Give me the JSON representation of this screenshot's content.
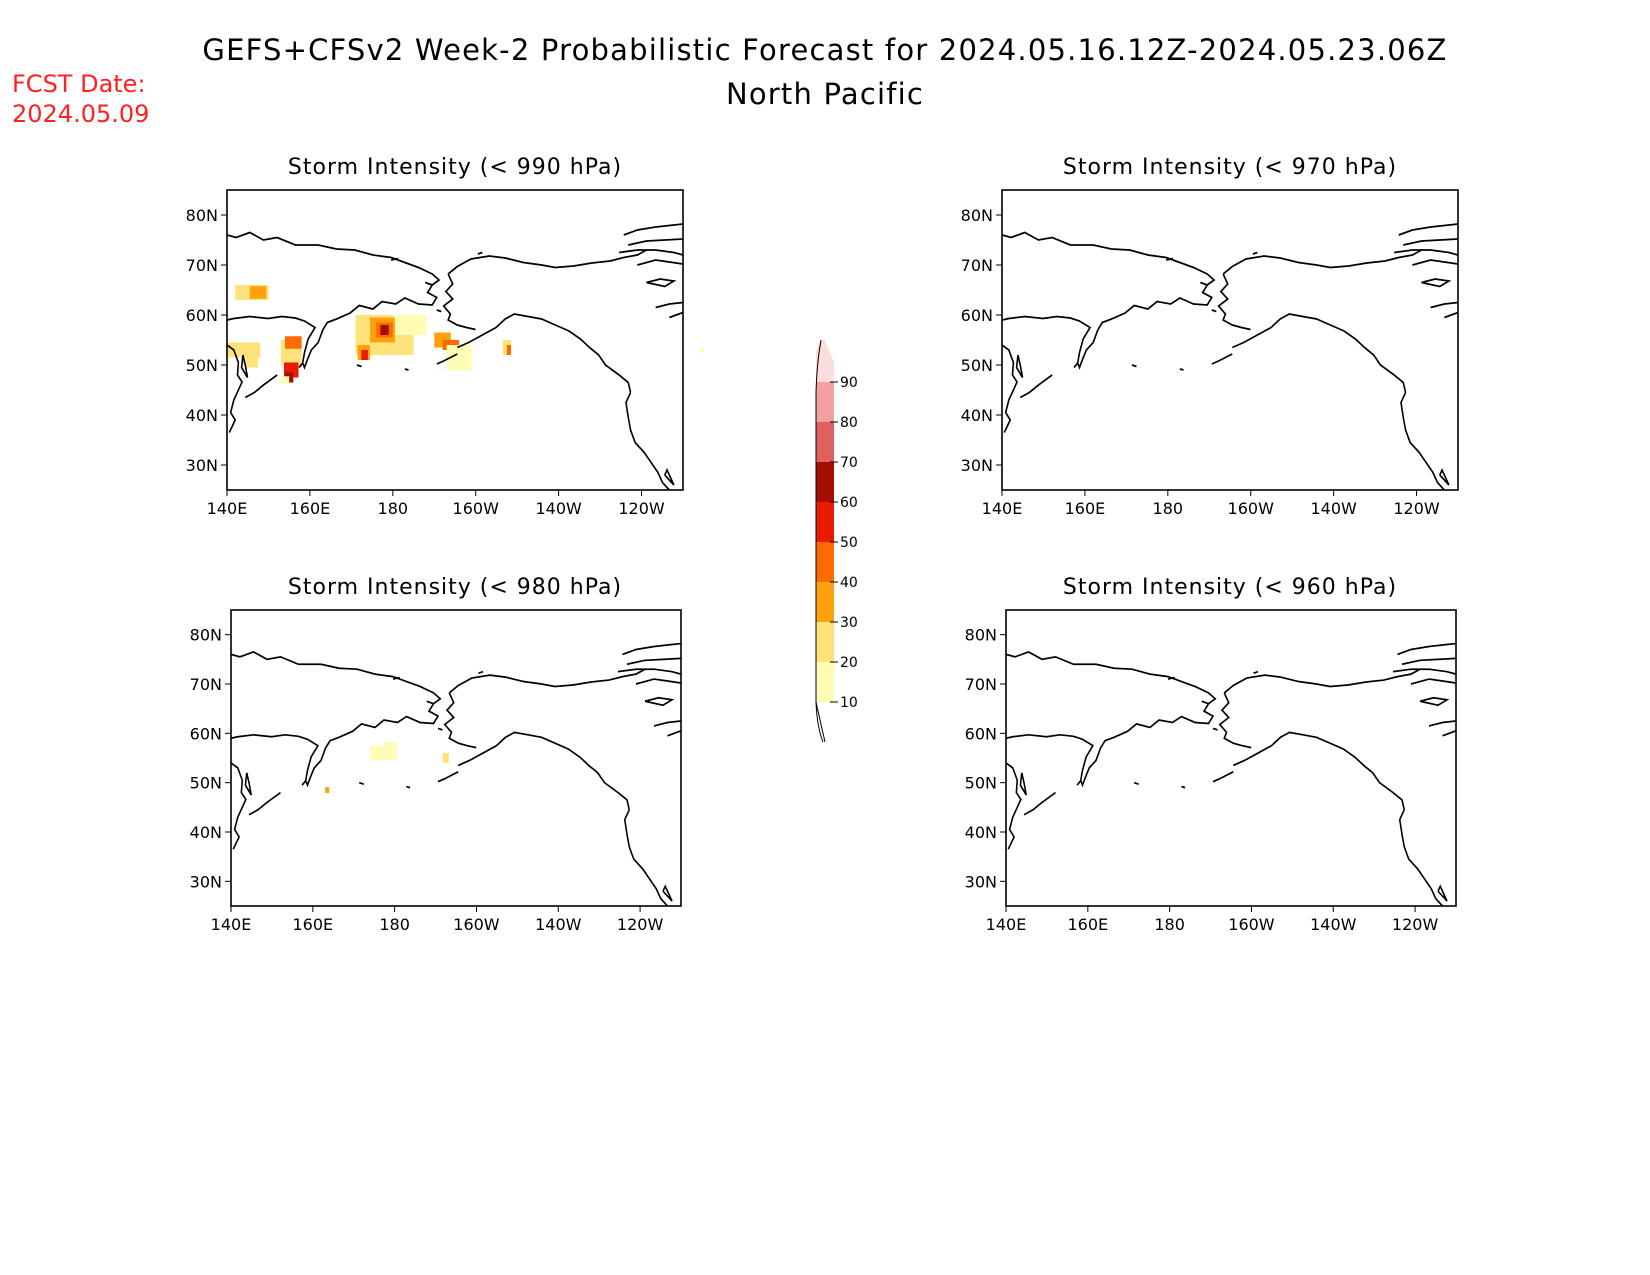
{
  "header": {
    "title": "GEFS+CFSv2 Week-2 Probabilistic Forecast for 2024.05.16.12Z-2024.05.23.06Z",
    "subtitle": "North Pacific",
    "fcst_label": "FCST Date:",
    "fcst_date": "2024.05.09"
  },
  "colors": {
    "text": "#000000",
    "fcst": "#ff2020",
    "levels": [
      "#fffcb4",
      "#ffe27a",
      "#ffa10a",
      "#ff6a00",
      "#e81b00",
      "#a50e00",
      "#e06060",
      "#f2a0a0",
      "#fddede"
    ]
  },
  "lon_ticks": [
    "140E",
    "160E",
    "180",
    "160W",
    "140W",
    "120W"
  ],
  "lat_ticks": [
    "80N",
    "70N",
    "60N",
    "50N",
    "40N",
    "30N"
  ],
  "colorbar": {
    "labels": [
      "10",
      "20",
      "30",
      "40",
      "50",
      "60",
      "70",
      "80",
      "90"
    ]
  },
  "panels": [
    {
      "id": "p990",
      "title": "Storm Intensity (< 990 hPa)",
      "cells": [
        {
          "lon": 146,
          "lat": 64.5,
          "w": 8,
          "h": 3,
          "level": 1
        },
        {
          "lon": 147.5,
          "lat": 64.5,
          "w": 4,
          "h": 2.5,
          "level": 2
        },
        {
          "lon": 144,
          "lat": 53,
          "w": 8,
          "h": 3,
          "level": 1
        },
        {
          "lon": 146,
          "lat": 50.5,
          "w": 3,
          "h": 2,
          "level": 1
        },
        {
          "lon": 155.5,
          "lat": 52.5,
          "w": 5,
          "h": 5,
          "level": 1
        },
        {
          "lon": 156,
          "lat": 54.5,
          "w": 4,
          "h": 2.5,
          "level": 3
        },
        {
          "lon": 155.5,
          "lat": 49,
          "w": 3.5,
          "h": 3,
          "level": 4
        },
        {
          "lon": 155,
          "lat": 47.5,
          "w": 2,
          "h": 2,
          "level": 5
        },
        {
          "lon": 178,
          "lat": 56,
          "w": 14,
          "h": 8,
          "level": 1
        },
        {
          "lon": 184,
          "lat": 58,
          "w": 8,
          "h": 4,
          "level": 0
        },
        {
          "lon": 177.5,
          "lat": 57,
          "w": 6,
          "h": 5,
          "level": 2
        },
        {
          "lon": 178,
          "lat": 57,
          "w": 4,
          "h": 3,
          "level": 3
        },
        {
          "lon": 178,
          "lat": 57,
          "w": 2,
          "h": 2,
          "level": 5
        },
        {
          "lon": 173,
          "lat": 52.5,
          "w": 3,
          "h": 3,
          "level": 2
        },
        {
          "lon": 173.2,
          "lat": 52,
          "w": 1.6,
          "h": 2,
          "level": 4
        },
        {
          "lon": 183,
          "lat": 53,
          "w": 3,
          "h": 2,
          "level": 1
        },
        {
          "lon": 192,
          "lat": 55,
          "w": 4,
          "h": 3,
          "level": 2
        },
        {
          "lon": 194,
          "lat": 54,
          "w": 4,
          "h": 2,
          "level": 3
        },
        {
          "lon": 196,
          "lat": 51.5,
          "w": 6,
          "h": 5,
          "level": 0
        },
        {
          "lon": 207.5,
          "lat": 53.5,
          "w": 2,
          "h": 3,
          "level": 1
        },
        {
          "lon": 208,
          "lat": 53,
          "w": 1,
          "h": 2,
          "level": 3
        },
        {
          "lon": 154,
          "lat": 47,
          "w": 2,
          "h": 1.5,
          "level": 0
        },
        {
          "lon": 254.5,
          "lat": 53,
          "w": 1,
          "h": 1,
          "level": 0
        }
      ]
    },
    {
      "id": "p970",
      "title": "Storm Intensity (< 970 hPa)",
      "cells": []
    },
    {
      "id": "p980",
      "title": "Storm Intensity (< 980 hPa)",
      "cells": [
        {
          "lon": 176,
          "lat": 56,
          "w": 4,
          "h": 3,
          "level": 0
        },
        {
          "lon": 179,
          "lat": 56.5,
          "w": 3,
          "h": 3.5,
          "level": 0
        },
        {
          "lon": 192.5,
          "lat": 55,
          "w": 1.5,
          "h": 2,
          "level": 1
        },
        {
          "lon": 163.5,
          "lat": 48.5,
          "w": 1,
          "h": 1.2,
          "level": 2
        }
      ]
    },
    {
      "id": "p960",
      "title": "Storm Intensity (< 960 hPa)",
      "cells": []
    }
  ]
}
